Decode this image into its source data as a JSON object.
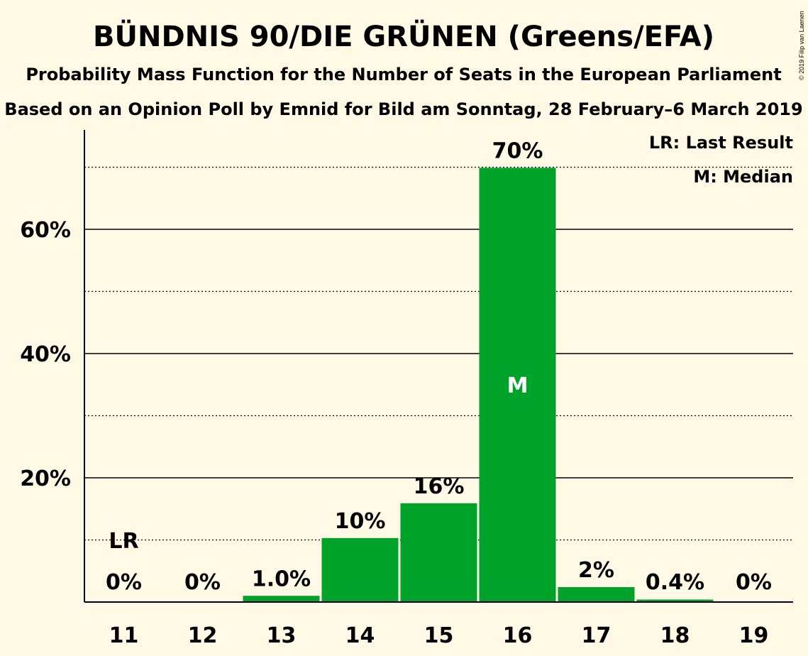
{
  "chart_data": {
    "type": "bar",
    "title": "BÜNDNIS 90/DIE GRÜNEN (Greens/EFA)",
    "subtitle": "Probability Mass Function for the Number of Seats in the European Parliament",
    "subtitle2": "Based on an Opinion Poll by Emnid for Bild am Sonntag, 28 February–6 March 2019",
    "categories": [
      "11",
      "12",
      "13",
      "14",
      "15",
      "16",
      "17",
      "18",
      "19"
    ],
    "values": [
      0,
      0,
      1.0,
      10.3,
      15.9,
      69.9,
      2.4,
      0.4,
      0
    ],
    "value_labels": [
      "0%",
      "0%",
      "1.0%",
      "10%",
      "16%",
      "70%",
      "2%",
      "0.4%",
      "0%"
    ],
    "ylim": [
      0,
      76
    ],
    "yticks": [
      20,
      40,
      60
    ],
    "ytick_labels": [
      "20%",
      "40%",
      "60%"
    ],
    "minor_gridlines": [
      10,
      30,
      50,
      70
    ],
    "last_result_category": "11",
    "last_result_marker": "LR",
    "median_category": "16",
    "median_marker": "M",
    "legend": [
      "LR: Last Result",
      "M: Median"
    ],
    "legend_position": "top-right",
    "bar_color": "#00A32A",
    "background_color": "#FFF9E6",
    "copyright": "© 2019 Filip van Laenen"
  }
}
